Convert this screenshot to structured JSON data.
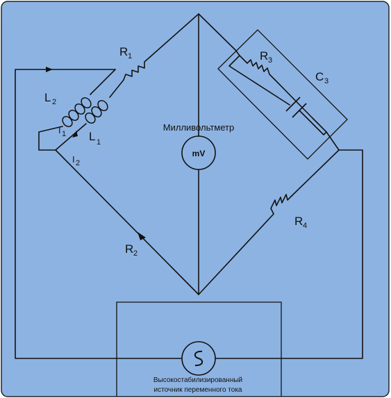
{
  "background_color": "#8db3e2",
  "line_color": "#111111",
  "labels": {
    "R1": {
      "main": "R",
      "sub": "1"
    },
    "R2": {
      "main": "R",
      "sub": "2"
    },
    "R3": {
      "main": "R",
      "sub": "3"
    },
    "R4": {
      "main": "R",
      "sub": "4"
    },
    "C3": {
      "main": "C",
      "sub": "3"
    },
    "L1": {
      "main": "L",
      "sub": "1"
    },
    "L2": {
      "main": "L",
      "sub": "2"
    },
    "I1": {
      "main": "I",
      "sub": "1"
    },
    "I2": {
      "main": "I",
      "sub": "2"
    }
  },
  "meter": {
    "title": "Милливольтметр",
    "symbol": "mV"
  },
  "source": {
    "symbol": "S",
    "caption_line1": "Высокостабилизированный",
    "caption_line2": "источник переменного тока"
  }
}
